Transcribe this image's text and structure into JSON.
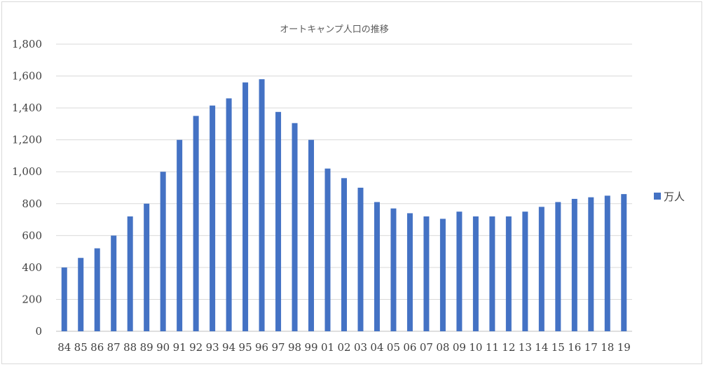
{
  "chart_data": {
    "type": "bar",
    "title": "オートキャンプ人口の推移",
    "xlabel": "",
    "ylabel": "",
    "ylim": [
      0,
      1800
    ],
    "yticks": [
      "0",
      "200",
      "400",
      "600",
      "800",
      "1,000",
      "1,200",
      "1,400",
      "1,600",
      "1,800"
    ],
    "ytick_values": [
      0,
      200,
      400,
      600,
      800,
      1000,
      1200,
      1400,
      1600,
      1800
    ],
    "grid": true,
    "legend_position": "right",
    "bar_color": "#4472c4",
    "categories": [
      "84",
      "85",
      "86",
      "87",
      "88",
      "89",
      "90",
      "91",
      "92",
      "93",
      "94",
      "95",
      "96",
      "97",
      "98",
      "99",
      "01",
      "02",
      "03",
      "04",
      "05",
      "06",
      "07",
      "08",
      "09",
      "10",
      "11",
      "12",
      "13",
      "14",
      "15",
      "16",
      "17",
      "18",
      "19"
    ],
    "series": [
      {
        "name": "万人",
        "values": [
          400,
          460,
          520,
          600,
          720,
          800,
          1000,
          1200,
          1350,
          1415,
          1460,
          1560,
          1580,
          1375,
          1305,
          1200,
          1020,
          960,
          900,
          810,
          770,
          740,
          720,
          705,
          750,
          720,
          720,
          720,
          750,
          780,
          810,
          830,
          840,
          850,
          860
        ]
      }
    ]
  }
}
